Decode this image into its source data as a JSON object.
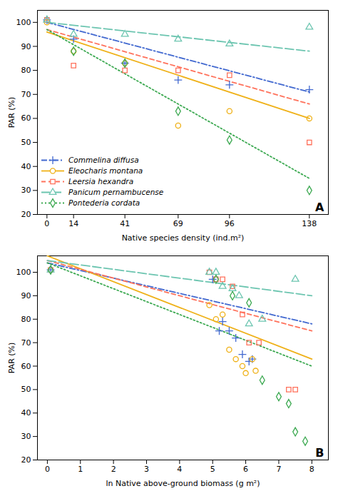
{
  "chart_data": [
    {
      "type": "scatter",
      "xlabel": "Native species density (ind.m²)",
      "ylabel": "PAR (%)",
      "annotation": "A",
      "xlim": [
        -5,
        148
      ],
      "xticks": [
        0,
        14,
        41,
        69,
        96,
        138
      ],
      "ylim": [
        20,
        105
      ],
      "yticks": [
        20,
        30,
        40,
        50,
        60,
        70,
        80,
        90,
        100
      ],
      "legend": "lower left",
      "series": [
        {
          "name": "Commelina diffusa",
          "marker": "plus",
          "line_style": "dashdot",
          "x": [
            0,
            14,
            41,
            69,
            96,
            138
          ],
          "values": [
            101,
            93,
            83,
            76,
            74,
            72
          ],
          "fit_x": [
            0,
            138
          ],
          "fit_values": [
            100,
            71
          ]
        },
        {
          "name": "Eleocharis montana",
          "marker": "circle",
          "line_style": "solid",
          "x": [
            0,
            14,
            41,
            69,
            96,
            138
          ],
          "values": [
            100,
            88,
            83,
            57,
            63,
            60
          ],
          "fit_x": [
            0,
            138
          ],
          "fit_values": [
            96,
            60
          ]
        },
        {
          "name": "Leersia hexandra",
          "marker": "square",
          "line_style": "dashed",
          "x": [
            0,
            14,
            41,
            69,
            96,
            138
          ],
          "values": [
            101,
            82,
            80,
            80,
            78,
            50
          ],
          "fit_x": [
            0,
            138
          ],
          "fit_values": [
            97,
            66
          ]
        },
        {
          "name": "Panicum pernambucense",
          "marker": "triangle",
          "line_style": "longdash",
          "x": [
            0,
            14,
            41,
            69,
            96,
            138
          ],
          "values": [
            101,
            95,
            95,
            93,
            91,
            98
          ],
          "fit_x": [
            0,
            138
          ],
          "fit_values": [
            100,
            88
          ]
        },
        {
          "name": "Pontederia cordata",
          "marker": "diamond",
          "line_style": "dotted",
          "x": [
            14,
            41,
            69,
            96,
            138
          ],
          "values": [
            88,
            83,
            63,
            51,
            30
          ],
          "fit_x": [
            0,
            138
          ],
          "fit_values": [
            97,
            35
          ]
        }
      ]
    },
    {
      "type": "scatter",
      "xlabel": "ln Native above-ground biomass (g m²)",
      "ylabel": "PAR (%)",
      "annotation": "B",
      "xlim": [
        -0.3,
        8.5
      ],
      "xticks": [
        0,
        1,
        2,
        3,
        4,
        5,
        6,
        7,
        8
      ],
      "ylim": [
        20,
        107
      ],
      "yticks": [
        20,
        30,
        40,
        50,
        60,
        70,
        80,
        90,
        100
      ],
      "series": [
        {
          "name": "Commelina diffusa",
          "marker": "plus",
          "line_style": "dashdot",
          "x": [
            0.1,
            5.0,
            5.2,
            5.3,
            5.5,
            5.7,
            5.9,
            6.1,
            6.2
          ],
          "values": [
            101,
            97,
            75,
            79,
            75,
            72,
            65,
            62,
            63
          ],
          "fit_x": [
            0,
            8
          ],
          "fit_values": [
            104,
            78
          ]
        },
        {
          "name": "Eleocharis montana",
          "marker": "circle",
          "line_style": "solid",
          "x": [
            0.1,
            4.9,
            5.1,
            5.3,
            5.5,
            5.7,
            5.9,
            6.0,
            6.2,
            6.3
          ],
          "values": [
            101,
            86,
            80,
            82,
            67,
            63,
            60,
            57,
            63,
            58
          ],
          "fit_x": [
            0,
            8
          ],
          "fit_values": [
            107,
            63
          ]
        },
        {
          "name": "Leersia hexandra",
          "marker": "square",
          "line_style": "dashed",
          "x": [
            0.1,
            4.9,
            5.1,
            5.3,
            5.6,
            5.9,
            6.1,
            6.4,
            7.3,
            7.5
          ],
          "values": [
            101,
            100,
            97,
            97,
            94,
            82,
            70,
            70,
            50,
            50
          ],
          "fit_x": [
            0,
            8
          ],
          "fit_values": [
            105,
            75
          ]
        },
        {
          "name": "Panicum pernambucense",
          "marker": "triangle",
          "line_style": "longdash",
          "x": [
            0.1,
            4.9,
            5.1,
            5.3,
            5.6,
            5.8,
            6.1,
            6.5,
            7.5
          ],
          "values": [
            101,
            100,
            100,
            94,
            93,
            90,
            78,
            80,
            97
          ],
          "fit_x": [
            0,
            8
          ],
          "fit_values": [
            105,
            90
          ]
        },
        {
          "name": "Pontederia cordata",
          "marker": "diamond",
          "line_style": "dotted",
          "x": [
            0.1,
            5.1,
            5.6,
            6.1,
            6.5,
            7.0,
            7.3,
            7.5,
            7.8
          ],
          "values": [
            101,
            97,
            90,
            87,
            54,
            47,
            44,
            32,
            28
          ],
          "fit_x": [
            0,
            8
          ],
          "fit_values": [
            104,
            60
          ]
        }
      ]
    }
  ]
}
